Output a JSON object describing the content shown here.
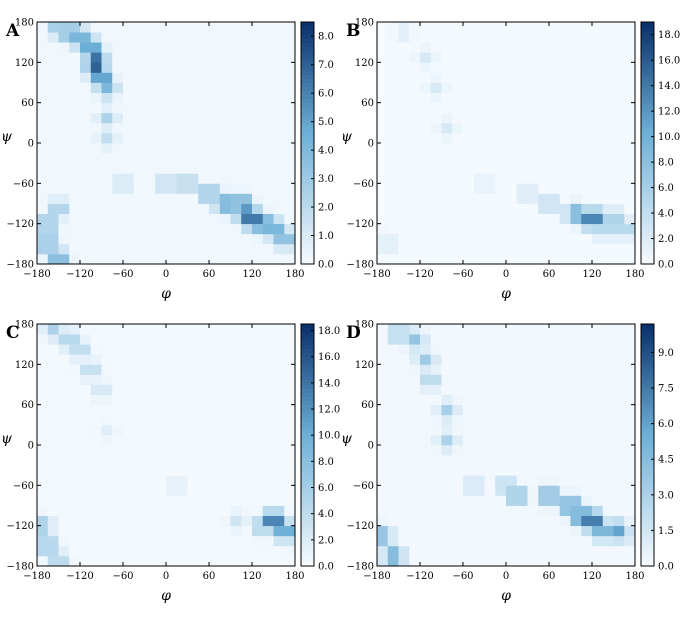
{
  "figure": {
    "xlabel": "φ",
    "ylabel": "ψ",
    "xtick_labels": [
      "−180",
      "−120",
      "−60",
      "0",
      "60",
      "120",
      "180"
    ],
    "ytick_labels": [
      "180",
      "120",
      "60",
      "0",
      "−60",
      "−120",
      "−180"
    ],
    "colormap": {
      "low": "#f7fbff",
      "mid": "#6baed6",
      "high": "#08306b"
    }
  },
  "chart_data": [
    {
      "type": "heatmap",
      "panel_label": "A",
      "xlabel": "φ",
      "ylabel": "ψ",
      "xlim": [
        -180,
        180
      ],
      "ylim": [
        -180,
        180
      ],
      "bin_size": 15,
      "zlim": [
        0,
        8.5
      ],
      "colorbar_ticks": [
        "8.0",
        "7.0",
        "6.0",
        "5.0",
        "4.0",
        "3.0",
        "2.0",
        "1.0",
        "0.0"
      ],
      "colorbar_values": [
        8,
        7,
        6,
        5,
        4,
        3,
        2,
        1,
        0
      ],
      "background": 0.2,
      "hotspots": [
        {
          "phi": -150,
          "psi": 172,
          "value": 3.5
        },
        {
          "phi": -135,
          "psi": 165,
          "value": 4.8
        },
        {
          "phi": -120,
          "psi": 157,
          "value": 5.5
        },
        {
          "phi": -105,
          "psi": 142,
          "value": 6.2
        },
        {
          "phi": -98,
          "psi": 127,
          "value": 6.5
        },
        {
          "phi": -98,
          "psi": 112,
          "value": 7.0
        },
        {
          "phi": -90,
          "psi": 97,
          "value": 6.5
        },
        {
          "phi": -82,
          "psi": 82,
          "value": 4.2
        },
        {
          "phi": -82,
          "psi": 37,
          "value": 2.5
        },
        {
          "phi": -82,
          "psi": 7,
          "value": 1.8
        },
        {
          "phi": -60,
          "psi": -60,
          "value": 1.6
        },
        {
          "phi": 0,
          "psi": -60,
          "value": 2.2
        },
        {
          "phi": 30,
          "psi": -60,
          "value": 2.8
        },
        {
          "phi": 60,
          "psi": -75,
          "value": 4.0
        },
        {
          "phi": 82,
          "psi": -90,
          "value": 5.0
        },
        {
          "phi": 105,
          "psi": -90,
          "value": 6.0
        },
        {
          "phi": 112,
          "psi": -105,
          "value": 7.0
        },
        {
          "phi": 120,
          "psi": -112,
          "value": 8.3
        },
        {
          "phi": 135,
          "psi": -120,
          "value": 6.5
        },
        {
          "phi": 150,
          "psi": -127,
          "value": 5.5
        },
        {
          "phi": 165,
          "psi": -142,
          "value": 4.5
        },
        {
          "phi": -165,
          "psi": -120,
          "value": 4.0
        },
        {
          "phi": -165,
          "psi": -150,
          "value": 4.5
        },
        {
          "phi": -150,
          "psi": -172,
          "value": 4.8
        },
        {
          "phi": -150,
          "psi": -97,
          "value": 3.0
        }
      ]
    },
    {
      "type": "heatmap",
      "panel_label": "B",
      "xlabel": "φ",
      "ylabel": "ψ",
      "xlim": [
        -180,
        180
      ],
      "ylim": [
        -180,
        180
      ],
      "bin_size": 15,
      "zlim": [
        0,
        19
      ],
      "colorbar_ticks": [
        "18.0",
        "16.0",
        "14.0",
        "12.0",
        "10.0",
        "8.0",
        "6.0",
        "4.0",
        "2.0",
        "0.0"
      ],
      "colorbar_values": [
        18,
        16,
        14,
        12,
        10,
        8,
        6,
        4,
        2,
        0
      ],
      "background": 0.2,
      "hotspots": [
        {
          "phi": -142,
          "psi": 165,
          "value": 2.0
        },
        {
          "phi": -112,
          "psi": 127,
          "value": 2.5
        },
        {
          "phi": -98,
          "psi": 82,
          "value": 2.5
        },
        {
          "phi": -82,
          "psi": 22,
          "value": 2.5
        },
        {
          "phi": -30,
          "psi": -60,
          "value": 2.0
        },
        {
          "phi": 30,
          "psi": -75,
          "value": 3.0
        },
        {
          "phi": 60,
          "psi": -90,
          "value": 5.0
        },
        {
          "phi": 97,
          "psi": -105,
          "value": 11.0
        },
        {
          "phi": 120,
          "psi": -112,
          "value": 17.5
        },
        {
          "phi": 135,
          "psi": -127,
          "value": 6.0
        },
        {
          "phi": 150,
          "psi": -112,
          "value": 7.0
        },
        {
          "phi": 165,
          "psi": -127,
          "value": 6.0
        },
        {
          "phi": -165,
          "psi": -150,
          "value": 2.5
        }
      ]
    },
    {
      "type": "heatmap",
      "panel_label": "C",
      "xlabel": "φ",
      "ylabel": "ψ",
      "xlim": [
        -180,
        180
      ],
      "ylim": [
        -180,
        180
      ],
      "bin_size": 15,
      "zlim": [
        0,
        18.5
      ],
      "colorbar_ticks": [
        "18.0",
        "16.0",
        "14.0",
        "12.0",
        "10.0",
        "8.0",
        "6.0",
        "4.0",
        "2.0",
        "0.0"
      ],
      "colorbar_values": [
        18,
        16,
        14,
        12,
        10,
        8,
        6,
        4,
        2,
        0
      ],
      "background": 0.2,
      "hotspots": [
        {
          "phi": -157,
          "psi": 172,
          "value": 5.5
        },
        {
          "phi": -135,
          "psi": 157,
          "value": 6.0
        },
        {
          "phi": -120,
          "psi": 142,
          "value": 5.0
        },
        {
          "phi": -105,
          "psi": 112,
          "value": 4.5
        },
        {
          "phi": -90,
          "psi": 82,
          "value": 3.0
        },
        {
          "phi": -82,
          "psi": 22,
          "value": 1.8
        },
        {
          "phi": 15,
          "psi": -60,
          "value": 2.0
        },
        {
          "phi": 100,
          "psi": -112,
          "value": 3.0
        },
        {
          "phi": 135,
          "psi": -120,
          "value": 7.0
        },
        {
          "phi": 150,
          "psi": -112,
          "value": 17.0
        },
        {
          "phi": 165,
          "psi": -127,
          "value": 13.0
        },
        {
          "phi": -172,
          "psi": -120,
          "value": 7.0
        },
        {
          "phi": -165,
          "psi": -150,
          "value": 8.0
        },
        {
          "phi": -150,
          "psi": -172,
          "value": 5.5
        }
      ]
    },
    {
      "type": "heatmap",
      "panel_label": "D",
      "xlabel": "φ",
      "ylabel": "ψ",
      "xlim": [
        -180,
        180
      ],
      "ylim": [
        -180,
        180
      ],
      "bin_size": 15,
      "zlim": [
        0,
        10.2
      ],
      "colorbar_ticks": [
        "9.0",
        "7.5",
        "6.0",
        "4.5",
        "3.0",
        "1.5",
        "0.0"
      ],
      "colorbar_values": [
        9,
        7.5,
        6,
        4.5,
        3,
        1.5,
        0
      ],
      "background": 0.2,
      "hotspots": [
        {
          "phi": -150,
          "psi": 165,
          "value": 3.5
        },
        {
          "phi": -127,
          "psi": 157,
          "value": 4.0
        },
        {
          "phi": -112,
          "psi": 127,
          "value": 3.5
        },
        {
          "phi": -105,
          "psi": 97,
          "value": 3.0
        },
        {
          "phi": -82,
          "psi": 52,
          "value": 3.2
        },
        {
          "phi": -82,
          "psi": 7,
          "value": 3.0
        },
        {
          "phi": -45,
          "psi": -60,
          "value": 2.0
        },
        {
          "phi": 0,
          "psi": -60,
          "value": 3.0
        },
        {
          "phi": 15,
          "psi": -75,
          "value": 5.0
        },
        {
          "phi": 60,
          "psi": -75,
          "value": 6.0
        },
        {
          "phi": 90,
          "psi": -90,
          "value": 7.0
        },
        {
          "phi": 105,
          "psi": -105,
          "value": 8.0
        },
        {
          "phi": 120,
          "psi": -112,
          "value": 9.8
        },
        {
          "phi": 135,
          "psi": -127,
          "value": 6.5
        },
        {
          "phi": 157,
          "psi": -127,
          "value": 6.0
        },
        {
          "phi": -172,
          "psi": -135,
          "value": 5.0
        },
        {
          "phi": -157,
          "psi": -165,
          "value": 6.0
        }
      ]
    }
  ]
}
